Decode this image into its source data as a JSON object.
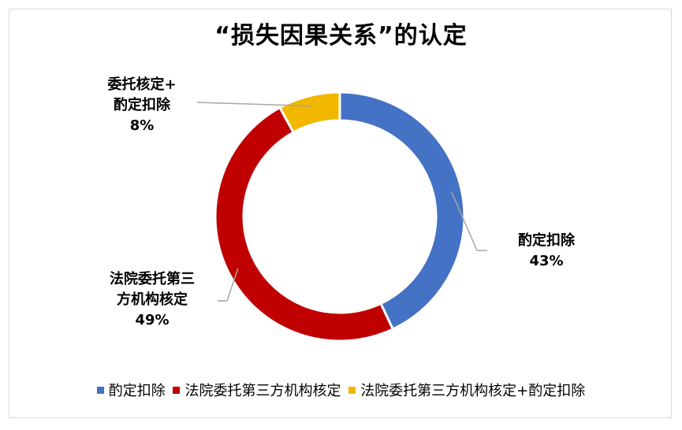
{
  "chart_data": {
    "type": "pie",
    "variant": "donut",
    "title": "“损失因果关系”的认定",
    "slices": [
      {
        "legend": "酌定扣除",
        "label_lines": [
          "酌定扣除"
        ],
        "value": 43,
        "value_label": "43%",
        "color": "#4472C4"
      },
      {
        "legend": "法院委托第三方机构核定",
        "label_lines": [
          "法院委托第三",
          "方机构核定"
        ],
        "value": 49,
        "value_label": "49%",
        "color": "#C00000"
      },
      {
        "legend": "法院委托第三方机构核定+酌定扣除",
        "label_lines": [
          "委托核定+",
          "酌定扣除"
        ],
        "value": 8,
        "value_label": "8%",
        "color": "#F2B800"
      }
    ],
    "legend_position": "bottom"
  }
}
